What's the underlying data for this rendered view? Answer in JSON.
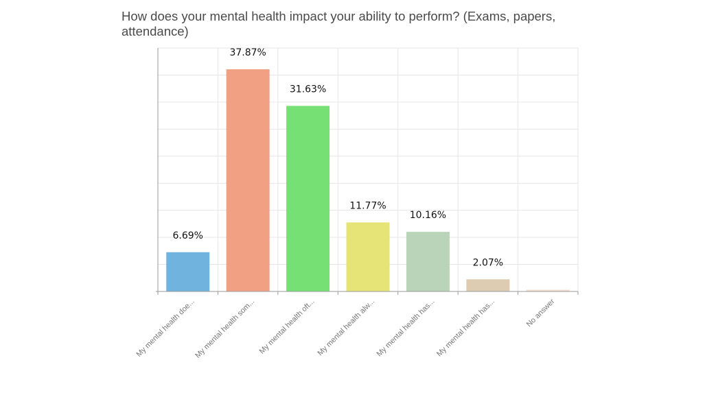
{
  "chart_data": {
    "type": "bar",
    "title": "How does your mental health impact your ability to perform? (Exams, papers, attendance)",
    "categories": [
      "My mental health doe...",
      "My mental health som...",
      "My mental health oft...",
      "My mental health alw...",
      "My mental health has...",
      "My mental health has...",
      "No answer"
    ],
    "values": [
      6.69,
      37.87,
      31.63,
      11.77,
      10.16,
      2.07,
      0.3
    ],
    "data_labels": [
      "6.69%",
      "37.87%",
      "31.63%",
      "11.77%",
      "10.16%",
      "2.07%",
      ""
    ],
    "colors": [
      "#6fb3de",
      "#f2a083",
      "#77e075",
      "#e6e477",
      "#b9d4b8",
      "#ddccb2",
      "#f6ddd3"
    ],
    "ylim": [
      0,
      41.5
    ],
    "grid": true,
    "legend": "none",
    "xlabel": "",
    "ylabel": ""
  }
}
